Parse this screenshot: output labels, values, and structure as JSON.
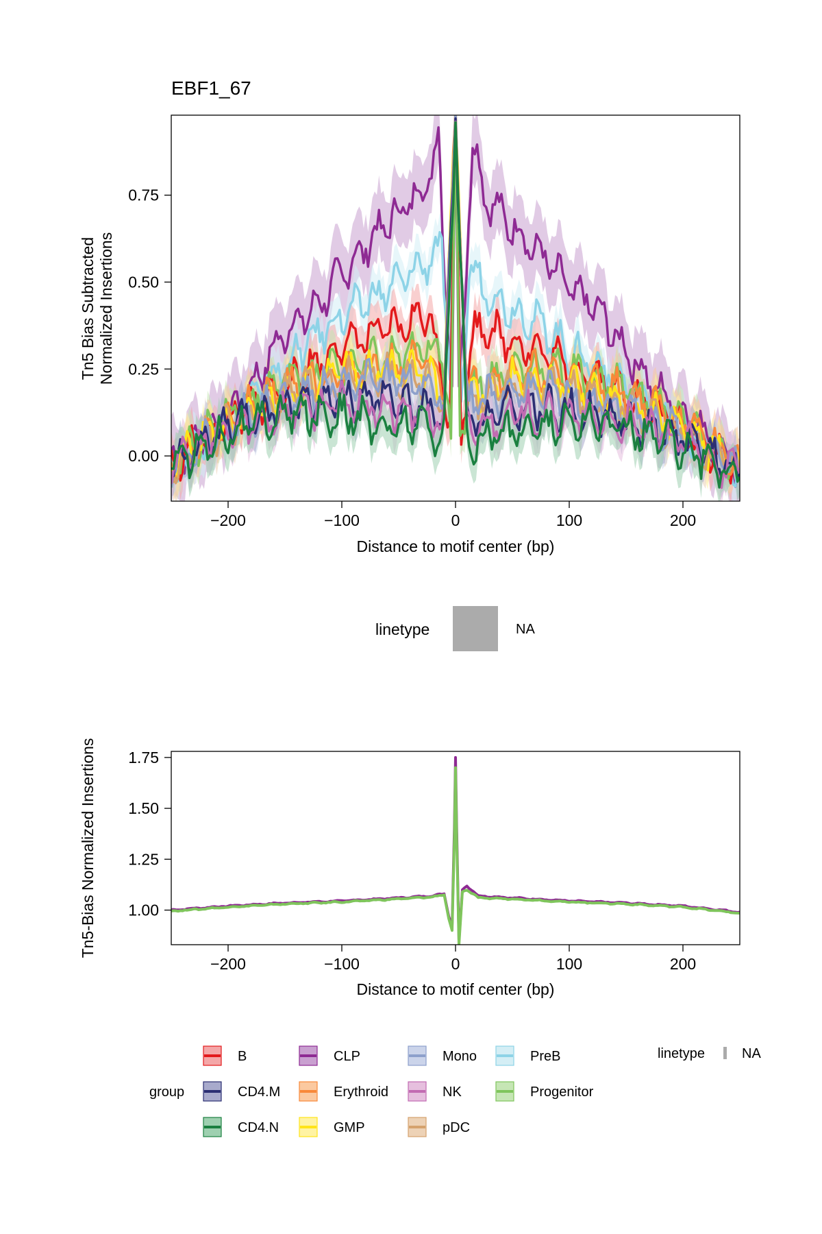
{
  "chart_data": [
    {
      "type": "line",
      "title": "EBF1_67",
      "xlabel": "Distance to motif center (bp)",
      "ylabel_lines": [
        "Tn5 Bias Subtracted",
        "Normalized Insertions"
      ],
      "xlim": [
        -250,
        250
      ],
      "ylim": [
        -0.13,
        0.98
      ],
      "xticks": [
        -200,
        -100,
        0,
        100,
        200
      ],
      "xtick_labels": [
        "−200",
        "−100",
        "0",
        "100",
        "200"
      ],
      "yticks": [
        0.0,
        0.25,
        0.5,
        0.75
      ],
      "ytick_labels": [
        "0.00",
        "0.25",
        "0.50",
        "0.75"
      ],
      "ribbon": true,
      "series": [
        {
          "name": "CLP",
          "color": "#8E2A93",
          "fill": "#C9A0D0",
          "x": [
            -250,
            -225,
            -200,
            -175,
            -150,
            -125,
            -100,
            -75,
            -50,
            -25,
            -15,
            -8,
            -3,
            0,
            3,
            8,
            15,
            25,
            50,
            75,
            100,
            125,
            150,
            175,
            200,
            225,
            250
          ],
          "y": [
            -0.02,
            0.05,
            0.12,
            0.22,
            0.36,
            0.42,
            0.52,
            0.62,
            0.7,
            0.78,
            0.92,
            0.4,
            0.2,
            0.98,
            0.2,
            0.45,
            0.92,
            0.75,
            0.66,
            0.58,
            0.48,
            0.42,
            0.3,
            0.2,
            0.12,
            0.05,
            -0.05
          ]
        },
        {
          "name": "PreB",
          "color": "#8DD3E7",
          "fill": "#D4EEF5",
          "x": [
            -250,
            -225,
            -200,
            -175,
            -150,
            -125,
            -100,
            -75,
            -50,
            -25,
            -12,
            -5,
            0,
            5,
            12,
            25,
            50,
            75,
            100,
            125,
            150,
            175,
            200,
            225,
            250
          ],
          "y": [
            -0.04,
            0.03,
            0.1,
            0.18,
            0.26,
            0.34,
            0.4,
            0.45,
            0.5,
            0.56,
            0.6,
            0.22,
            0.98,
            0.12,
            0.55,
            0.48,
            0.42,
            0.38,
            0.3,
            0.26,
            0.2,
            0.14,
            0.08,
            0.02,
            -0.06
          ]
        },
        {
          "name": "B",
          "color": "#E31A1C",
          "fill": "#F4A7A8",
          "x": [
            -250,
            -200,
            -150,
            -100,
            -60,
            -40,
            -25,
            -15,
            -5,
            0,
            5,
            15,
            25,
            40,
            60,
            100,
            150,
            200,
            250
          ],
          "y": [
            -0.02,
            0.1,
            0.2,
            0.32,
            0.36,
            0.38,
            0.42,
            0.3,
            0.1,
            0.98,
            0.05,
            0.35,
            0.38,
            0.34,
            0.32,
            0.26,
            0.18,
            0.08,
            -0.04
          ]
        },
        {
          "name": "Progenitor",
          "color": "#7FC55C",
          "fill": "#C6E6B5",
          "x": [
            -250,
            -200,
            -150,
            -100,
            -60,
            -30,
            -12,
            -4,
            0,
            4,
            12,
            30,
            60,
            100,
            150,
            200,
            250
          ],
          "y": [
            -0.03,
            0.12,
            0.22,
            0.26,
            0.28,
            0.3,
            0.32,
            0.05,
            0.98,
            0.05,
            0.2,
            0.22,
            0.26,
            0.24,
            0.2,
            0.1,
            -0.04
          ]
        },
        {
          "name": "Erythroid",
          "color": "#F8893A",
          "fill": "#FBC9A0",
          "x": [
            -250,
            -200,
            -150,
            -100,
            -60,
            -30,
            -10,
            0,
            10,
            30,
            60,
            100,
            150,
            200,
            250
          ],
          "y": [
            -0.03,
            0.1,
            0.2,
            0.24,
            0.26,
            0.27,
            0.22,
            0.98,
            0.18,
            0.22,
            0.24,
            0.22,
            0.18,
            0.1,
            -0.03
          ]
        },
        {
          "name": "GMP",
          "color": "#FFE419",
          "fill": "#FFF3A3",
          "x": [
            -250,
            -200,
            -150,
            -100,
            -60,
            -30,
            -10,
            0,
            10,
            30,
            60,
            100,
            150,
            200,
            250
          ],
          "y": [
            -0.03,
            0.1,
            0.18,
            0.24,
            0.25,
            0.24,
            0.2,
            0.98,
            0.18,
            0.2,
            0.22,
            0.2,
            0.16,
            0.08,
            -0.04
          ]
        },
        {
          "name": "pDC",
          "color": "#D5A26E",
          "fill": "#EDD2B6",
          "x": [
            -250,
            -200,
            -150,
            -100,
            -60,
            -30,
            -10,
            0,
            10,
            30,
            60,
            100,
            150,
            200,
            250
          ],
          "y": [
            -0.03,
            0.09,
            0.17,
            0.22,
            0.23,
            0.22,
            0.18,
            0.98,
            0.16,
            0.18,
            0.2,
            0.18,
            0.14,
            0.07,
            -0.04
          ]
        },
        {
          "name": "Mono",
          "color": "#8DA0CB",
          "fill": "#CBD4EA",
          "x": [
            -250,
            -200,
            -150,
            -100,
            -60,
            -30,
            -10,
            0,
            10,
            30,
            60,
            100,
            150,
            200,
            250
          ],
          "y": [
            -0.03,
            0.09,
            0.16,
            0.21,
            0.22,
            0.21,
            0.17,
            0.98,
            0.15,
            0.17,
            0.19,
            0.17,
            0.13,
            0.06,
            -0.04
          ]
        },
        {
          "name": "CD4.M",
          "color": "#2C2F73",
          "fill": "#A8AACC",
          "x": [
            -250,
            -200,
            -150,
            -100,
            -60,
            -30,
            -10,
            0,
            10,
            30,
            60,
            100,
            150,
            200,
            250
          ],
          "y": [
            -0.03,
            0.08,
            0.14,
            0.17,
            0.16,
            0.14,
            0.1,
            0.98,
            0.08,
            0.12,
            0.14,
            0.13,
            0.1,
            0.05,
            -0.05
          ]
        },
        {
          "name": "NK",
          "color": "#C26BB2",
          "fill": "#E6BFDE",
          "x": [
            -250,
            -200,
            -150,
            -100,
            -60,
            -30,
            -10,
            0,
            10,
            30,
            60,
            100,
            150,
            200,
            250
          ],
          "y": [
            -0.02,
            0.07,
            0.13,
            0.15,
            0.13,
            0.12,
            0.09,
            0.98,
            0.07,
            0.1,
            0.12,
            0.11,
            0.09,
            0.04,
            -0.05
          ]
        },
        {
          "name": "CD4.N",
          "color": "#1B8040",
          "fill": "#9ED0B0",
          "x": [
            -250,
            -200,
            -150,
            -100,
            -60,
            -30,
            -10,
            0,
            10,
            30,
            60,
            100,
            150,
            200,
            250
          ],
          "y": [
            -0.02,
            0.07,
            0.12,
            0.12,
            0.08,
            0.1,
            0.05,
            0.98,
            0.03,
            0.06,
            0.08,
            0.1,
            0.08,
            0.03,
            -0.06
          ]
        }
      ]
    },
    {
      "type": "line",
      "xlabel": "Distance to motif center (bp)",
      "ylabel": "Tn5-Bias Normalized Insertions",
      "xlim": [
        -250,
        250
      ],
      "ylim": [
        0.83,
        1.78
      ],
      "xticks": [
        -200,
        -100,
        0,
        100,
        200
      ],
      "xtick_labels": [
        "−200",
        "−100",
        "0",
        "100",
        "200"
      ],
      "yticks": [
        1.0,
        1.25,
        1.5,
        1.75
      ],
      "ytick_labels": [
        "1.00",
        "1.25",
        "1.50",
        "1.75"
      ],
      "series": [
        {
          "name": "CLP",
          "color": "#8E2A93",
          "x": [
            -250,
            -200,
            -150,
            -100,
            -50,
            -20,
            -10,
            -6,
            -3,
            -1,
            0,
            1,
            3,
            6,
            10,
            20,
            50,
            100,
            150,
            200,
            250
          ],
          "y": [
            1.0,
            1.02,
            1.035,
            1.045,
            1.06,
            1.07,
            1.08,
            0.97,
            0.92,
            1.4,
            1.75,
            1.4,
            0.85,
            1.1,
            1.12,
            1.07,
            1.06,
            1.045,
            1.035,
            1.02,
            0.99
          ]
        },
        {
          "name": "Progenitor",
          "color": "#7FC55C",
          "x": [
            -250,
            -200,
            -150,
            -100,
            -50,
            -20,
            -10,
            -6,
            -3,
            -1,
            0,
            1,
            3,
            6,
            10,
            20,
            50,
            100,
            150,
            200,
            250
          ],
          "y": [
            0.995,
            1.015,
            1.03,
            1.04,
            1.055,
            1.065,
            1.075,
            0.96,
            0.9,
            1.35,
            1.7,
            1.35,
            0.83,
            1.09,
            1.1,
            1.06,
            1.055,
            1.04,
            1.03,
            1.015,
            0.985
          ]
        }
      ]
    }
  ],
  "middle_legend": {
    "title": "linetype",
    "value": "NA",
    "swatch_color": "#ABABAB"
  },
  "legend": {
    "group_title": "group",
    "linetype_title": "linetype",
    "linetype_value": "NA",
    "items": [
      {
        "name": "B",
        "color": "#E31A1C",
        "fill": "#F4A7A8"
      },
      {
        "name": "CD4.M",
        "color": "#2C2F73",
        "fill": "#A8AACC"
      },
      {
        "name": "CD4.N",
        "color": "#1B8040",
        "fill": "#9ED0B0"
      },
      {
        "name": "CLP",
        "color": "#8E2A93",
        "fill": "#C9A0D0"
      },
      {
        "name": "Erythroid",
        "color": "#F8893A",
        "fill": "#FBC9A0"
      },
      {
        "name": "GMP",
        "color": "#FFE419",
        "fill": "#FFF3A3"
      },
      {
        "name": "Mono",
        "color": "#8DA0CB",
        "fill": "#CBD4EA"
      },
      {
        "name": "NK",
        "color": "#C26BB2",
        "fill": "#E6BFDE"
      },
      {
        "name": "pDC",
        "color": "#D5A26E",
        "fill": "#EDD2B6"
      },
      {
        "name": "PreB",
        "color": "#8DD3E7",
        "fill": "#D4EEF5"
      },
      {
        "name": "Progenitor",
        "color": "#7FC55C",
        "fill": "#C6E6B5"
      }
    ]
  }
}
